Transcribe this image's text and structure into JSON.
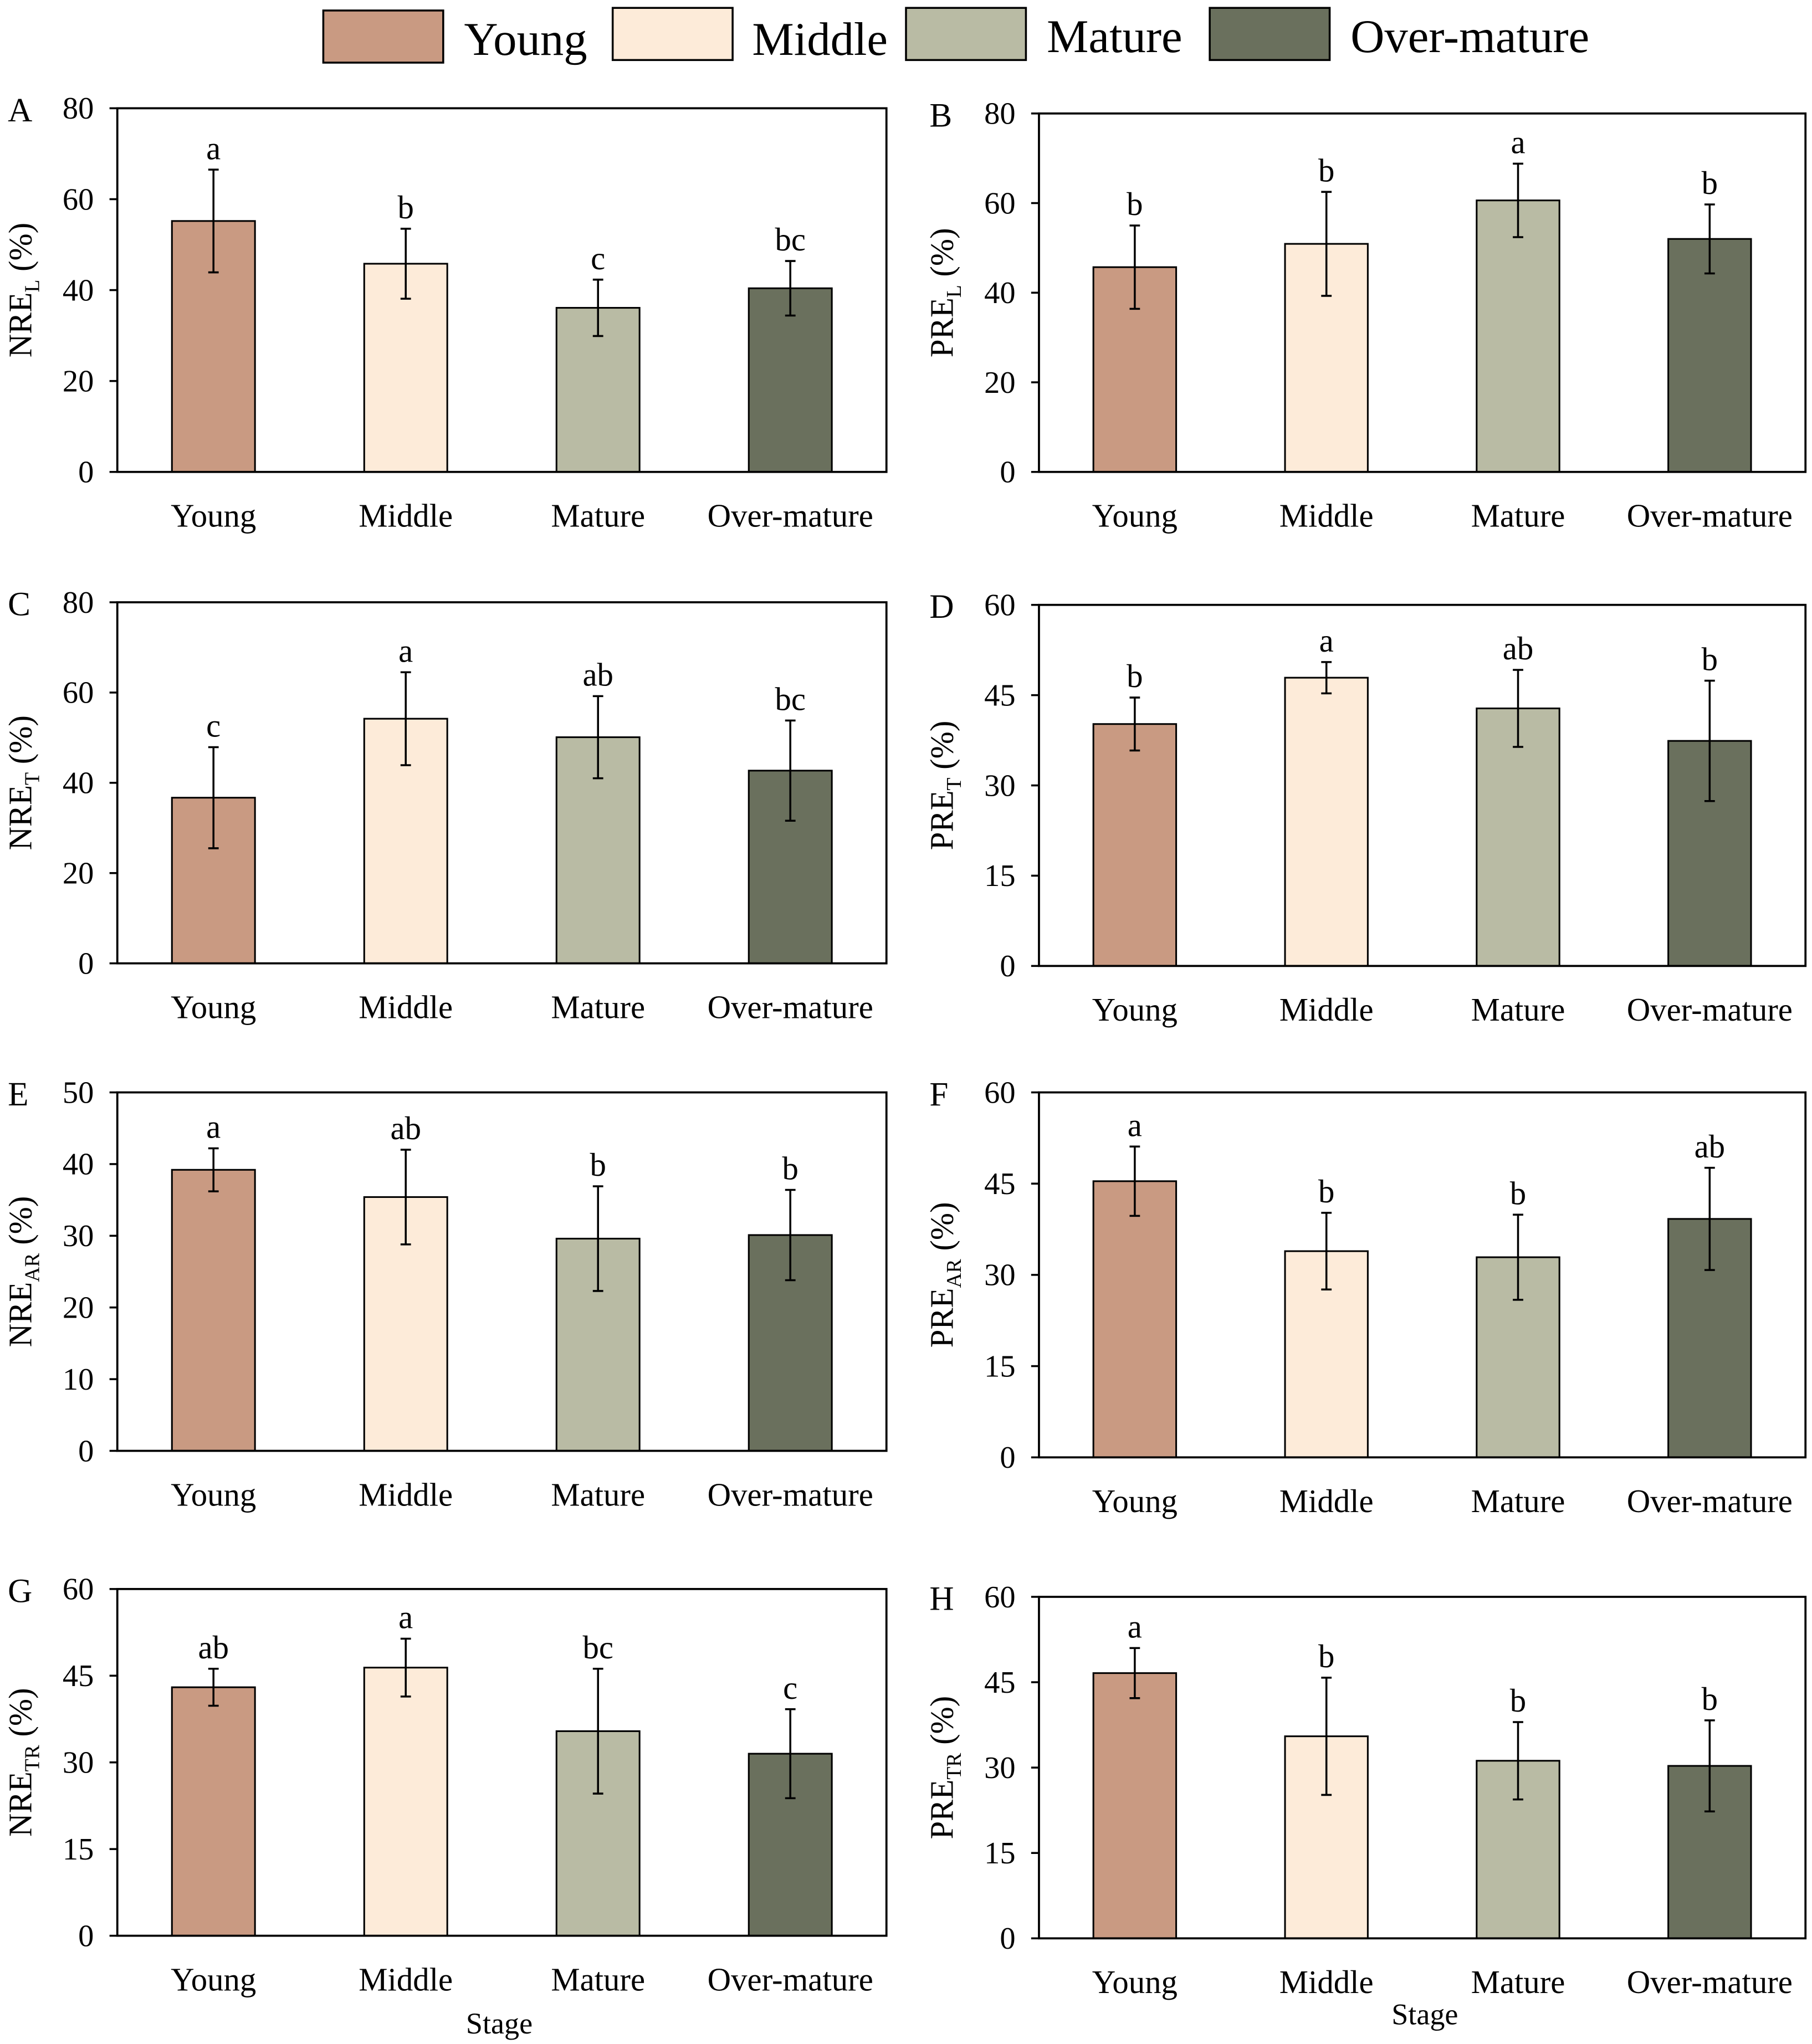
{
  "legend": [
    {
      "label": "Young",
      "color": "#c99a82"
    },
    {
      "label": "Middle",
      "color": "#fdebd9"
    },
    {
      "label": "Mature",
      "color": "#b9bba4"
    },
    {
      "label": "Over-mature",
      "color": "#6a705d"
    }
  ],
  "xlabel": "Stage",
  "chart_data": [
    {
      "type": "bar",
      "panel": "A",
      "ylabel": "NRE",
      "ylabel_sub": "L",
      "ylabel_unit": " (%)",
      "categories": [
        "Young",
        "Middle",
        "Mature",
        "Over-mature"
      ],
      "values": [
        55.2,
        45.8,
        36.1,
        40.4
      ],
      "errors": [
        11.3,
        7.7,
        6.2,
        6.0
      ],
      "letters": [
        "a",
        "b",
        "c",
        "bc"
      ],
      "ylim": [
        0,
        80
      ],
      "yticks": [
        0,
        20,
        40,
        60,
        80
      ]
    },
    {
      "type": "bar",
      "panel": "B",
      "ylabel": "PRE",
      "ylabel_sub": "L",
      "ylabel_unit": " (%)",
      "categories": [
        "Young",
        "Middle",
        "Mature",
        "Over-mature"
      ],
      "values": [
        45.7,
        50.9,
        60.6,
        52.0
      ],
      "errors": [
        9.3,
        11.6,
        8.2,
        7.7
      ],
      "letters": [
        "b",
        "b",
        "a",
        "b"
      ],
      "ylim": [
        0,
        80
      ],
      "yticks": [
        0,
        20,
        40,
        60,
        80
      ]
    },
    {
      "type": "bar",
      "panel": "C",
      "ylabel": "NRE",
      "ylabel_sub": "T",
      "ylabel_unit": " (%)",
      "categories": [
        "Young",
        "Middle",
        "Mature",
        "Over-mature"
      ],
      "values": [
        36.7,
        54.2,
        50.1,
        42.7
      ],
      "errors": [
        11.2,
        10.3,
        9.1,
        11.1
      ],
      "letters": [
        "c",
        "a",
        "ab",
        "bc"
      ],
      "ylim": [
        0,
        80
      ],
      "yticks": [
        0,
        20,
        40,
        60,
        80
      ]
    },
    {
      "type": "bar",
      "panel": "D",
      "ylabel": "PRE",
      "ylabel_sub": "T",
      "ylabel_unit": " (%)",
      "categories": [
        "Young",
        "Middle",
        "Mature",
        "Over-mature"
      ],
      "values": [
        40.2,
        47.9,
        42.8,
        37.4
      ],
      "errors": [
        4.4,
        2.6,
        6.4,
        10.0
      ],
      "letters": [
        "b",
        "a",
        "ab",
        "b"
      ],
      "ylim": [
        0,
        60
      ],
      "yticks": [
        0,
        15,
        30,
        45,
        60
      ]
    },
    {
      "type": "bar",
      "panel": "E",
      "ylabel": "NRE",
      "ylabel_sub": "AR",
      "ylabel_unit": " (%)",
      "categories": [
        "Young",
        "Middle",
        "Mature",
        "Over-mature"
      ],
      "values": [
        39.2,
        35.4,
        29.6,
        30.1
      ],
      "errors": [
        3.0,
        6.6,
        7.3,
        6.3
      ],
      "letters": [
        "a",
        "ab",
        "b",
        "b"
      ],
      "ylim": [
        0,
        50
      ],
      "yticks": [
        0,
        10,
        20,
        30,
        40,
        50
      ]
    },
    {
      "type": "bar",
      "panel": "F",
      "ylabel": "PRE",
      "ylabel_sub": "AR",
      "ylabel_unit": " (%)",
      "categories": [
        "Young",
        "Middle",
        "Mature",
        "Over-mature"
      ],
      "values": [
        45.4,
        33.9,
        32.9,
        39.2
      ],
      "errors": [
        5.7,
        6.3,
        7.0,
        8.4
      ],
      "letters": [
        "a",
        "b",
        "b",
        "ab"
      ],
      "ylim": [
        0,
        60
      ],
      "yticks": [
        0,
        15,
        30,
        45,
        60
      ]
    },
    {
      "type": "bar",
      "panel": "G",
      "ylabel": "NRE",
      "ylabel_sub": "TR",
      "ylabel_unit": " (%)",
      "categories": [
        "Young",
        "Middle",
        "Mature",
        "Over-mature"
      ],
      "values": [
        43.0,
        46.4,
        35.4,
        31.5
      ],
      "errors": [
        3.2,
        5.0,
        10.8,
        7.7
      ],
      "letters": [
        "ab",
        "a",
        "bc",
        "c"
      ],
      "ylim": [
        0,
        60
      ],
      "yticks": [
        0,
        15,
        30,
        45,
        60
      ]
    },
    {
      "type": "bar",
      "panel": "H",
      "ylabel": "PRE",
      "ylabel_sub": "TR",
      "ylabel_unit": " (%)",
      "categories": [
        "Young",
        "Middle",
        "Mature",
        "Over-mature"
      ],
      "values": [
        46.6,
        35.5,
        31.2,
        30.3
      ],
      "errors": [
        4.4,
        10.3,
        6.8,
        8.0
      ],
      "letters": [
        "a",
        "b",
        "b",
        "b"
      ],
      "ylim": [
        0,
        60
      ],
      "yticks": [
        0,
        15,
        30,
        45,
        60
      ]
    }
  ]
}
